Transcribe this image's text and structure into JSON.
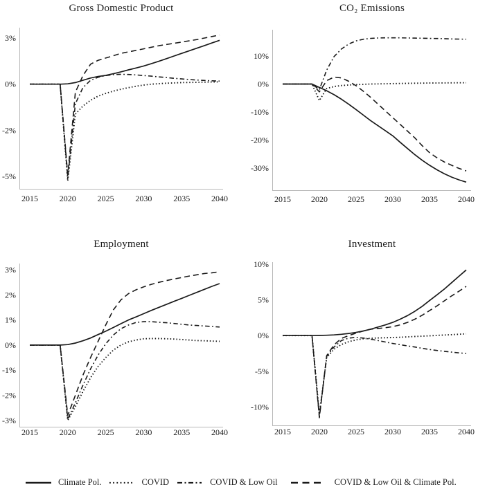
{
  "figure": {
    "background": "#ffffff",
    "line_color": "#1a1a1a",
    "axis_color": "#b8b8b8"
  },
  "legend": {
    "items": [
      {
        "label": "Climate Pol.",
        "style": "solid"
      },
      {
        "label": "COVID",
        "style": "dotted"
      },
      {
        "label": "COVID & Low Oil",
        "style": "dashdot"
      },
      {
        "label": "COVID & Low Oil & Climate Pol.",
        "style": "dashed"
      }
    ]
  },
  "chart_data": [
    {
      "id": "gdp",
      "type": "line",
      "title": "Gross Domestic Product",
      "xlabel": "",
      "ylabel": "",
      "x_ticks": [
        "2015",
        "2020",
        "2025",
        "2030",
        "2035",
        "2040"
      ],
      "y_ticks": [
        {
          "label": "3%",
          "value": 3
        },
        {
          "label": "0%",
          "value": 0
        },
        {
          "label": "-2%",
          "value": -2
        },
        {
          "label": "-5%",
          "value": -5
        }
      ],
      "xlim": [
        2015,
        2040
      ],
      "years": [
        2015,
        2016,
        2017,
        2018,
        2019,
        2020,
        2021,
        2022,
        2023,
        2024,
        2025,
        2026,
        2027,
        2028,
        2029,
        2030,
        2031,
        2032,
        2033,
        2034,
        2035,
        2036,
        2037,
        2038,
        2039,
        2040
      ],
      "series": [
        {
          "name": "Climate Pol.",
          "style": "solid",
          "values": [
            0,
            0,
            0,
            0,
            0,
            0.02,
            0.1,
            0.25,
            0.4,
            0.5,
            0.57,
            0.68,
            0.8,
            0.93,
            1.05,
            1.18,
            1.33,
            1.49,
            1.66,
            1.83,
            2.0,
            2.17,
            2.34,
            2.51,
            2.68,
            2.85
          ]
        },
        {
          "name": "COVID",
          "style": "dotted",
          "values": [
            0,
            0,
            0,
            0,
            0,
            -5.3,
            -1.3,
            -0.95,
            -0.7,
            -0.52,
            -0.4,
            -0.3,
            -0.22,
            -0.15,
            -0.09,
            -0.04,
            0,
            0.03,
            0.06,
            0.08,
            0.1,
            0.11,
            0.12,
            0.13,
            0.14,
            0.15
          ]
        },
        {
          "name": "COVID & Low Oil",
          "style": "dashdot",
          "values": [
            0,
            0,
            0,
            0,
            0,
            -5.1,
            -0.85,
            -0.15,
            0.25,
            0.45,
            0.56,
            0.62,
            0.64,
            0.63,
            0.6,
            0.56,
            0.52,
            0.47,
            0.43,
            0.38,
            0.34,
            0.3,
            0.27,
            0.24,
            0.22,
            0.2
          ]
        },
        {
          "name": "COVID & Low Oil & Climate Pol.",
          "style": "dashed",
          "values": [
            0,
            0,
            0,
            0,
            0,
            -4.9,
            -0.35,
            0.55,
            1.3,
            1.55,
            1.7,
            1.85,
            2.0,
            2.1,
            2.2,
            2.3,
            2.4,
            2.5,
            2.58,
            2.66,
            2.74,
            2.82,
            2.9,
            3.0,
            3.1,
            3.2
          ]
        }
      ]
    },
    {
      "id": "co2",
      "type": "line",
      "title": "CO₂ Emissions",
      "xlabel": "",
      "ylabel": "",
      "x_ticks": [
        "2015",
        "2020",
        "2025",
        "2030",
        "2035",
        "2040"
      ],
      "y_ticks": [
        {
          "label": "10%",
          "value": 10
        },
        {
          "label": "0%",
          "value": 0
        },
        {
          "label": "-10%",
          "value": -10
        },
        {
          "label": "-20%",
          "value": -20
        },
        {
          "label": "-30%",
          "value": -30
        }
      ],
      "xlim": [
        2015,
        2040
      ],
      "years": [
        2015,
        2016,
        2017,
        2018,
        2019,
        2020,
        2021,
        2022,
        2023,
        2024,
        2025,
        2026,
        2027,
        2028,
        2029,
        2030,
        2031,
        2032,
        2033,
        2034,
        2035,
        2036,
        2037,
        2038,
        2039,
        2040
      ],
      "series": [
        {
          "name": "Climate Pol.",
          "style": "solid",
          "values": [
            0,
            0,
            0,
            0,
            0,
            -1.2,
            -2.4,
            -3.8,
            -5.4,
            -7.2,
            -9.1,
            -11.1,
            -13.1,
            -14.9,
            -16.7,
            -18.5,
            -20.8,
            -23.0,
            -25.2,
            -27.2,
            -29.0,
            -30.6,
            -32.0,
            -33.2,
            -34.2,
            -35.0
          ]
        },
        {
          "name": "COVID",
          "style": "dotted",
          "values": [
            0,
            0,
            0,
            0,
            0,
            -5.9,
            -1.6,
            -0.9,
            -0.55,
            -0.35,
            -0.2,
            -0.1,
            0,
            0.05,
            0.1,
            0.15,
            0.2,
            0.25,
            0.3,
            0.33,
            0.36,
            0.38,
            0.4,
            0.42,
            0.44,
            0.45
          ]
        },
        {
          "name": "COVID & Low Oil",
          "style": "dashdot",
          "values": [
            0,
            0,
            0,
            0,
            0,
            -2.0,
            5.0,
            9.8,
            12.5,
            14.3,
            15.4,
            16.0,
            16.3,
            16.45,
            16.5,
            16.5,
            16.5,
            16.45,
            16.4,
            16.35,
            16.3,
            16.25,
            16.2,
            16.1,
            16.05,
            16.0
          ]
        },
        {
          "name": "COVID & Low Oil & Climate Pol.",
          "style": "dashed",
          "values": [
            0,
            0,
            0,
            0,
            0,
            -2.8,
            1.2,
            2.5,
            2.2,
            1.0,
            -0.6,
            -2.6,
            -4.8,
            -7.2,
            -9.6,
            -12.0,
            -14.4,
            -16.8,
            -19.2,
            -22.0,
            -24.5,
            -26.3,
            -27.8,
            -29.0,
            -30.1,
            -31.0
          ]
        }
      ]
    },
    {
      "id": "employment",
      "type": "line",
      "title": "Employment",
      "xlabel": "",
      "ylabel": "",
      "x_ticks": [
        "2015",
        "2020",
        "2025",
        "2030",
        "2035",
        "2040"
      ],
      "y_ticks": [
        {
          "label": "3%",
          "value": 3
        },
        {
          "label": "2%",
          "value": 2
        },
        {
          "label": "1%",
          "value": 1
        },
        {
          "label": "0%",
          "value": 0
        },
        {
          "label": "-1%",
          "value": -1
        },
        {
          "label": "-2%",
          "value": -2
        },
        {
          "label": "-3%",
          "value": -3
        }
      ],
      "xlim": [
        2015,
        2040
      ],
      "years": [
        2015,
        2016,
        2017,
        2018,
        2019,
        2020,
        2021,
        2022,
        2023,
        2024,
        2025,
        2026,
        2027,
        2028,
        2029,
        2030,
        2031,
        2032,
        2033,
        2034,
        2035,
        2036,
        2037,
        2038,
        2039,
        2040
      ],
      "series": [
        {
          "name": "Climate Pol.",
          "style": "solid",
          "values": [
            0,
            0,
            0,
            0,
            0,
            0.02,
            0.08,
            0.17,
            0.28,
            0.42,
            0.55,
            0.7,
            0.85,
            1.0,
            1.12,
            1.25,
            1.38,
            1.5,
            1.62,
            1.74,
            1.86,
            1.98,
            2.1,
            2.22,
            2.34,
            2.45
          ]
        },
        {
          "name": "COVID",
          "style": "dotted",
          "values": [
            0,
            0,
            0,
            0,
            0,
            -3.0,
            -2.45,
            -1.85,
            -1.3,
            -0.85,
            -0.5,
            -0.2,
            0,
            0.13,
            0.2,
            0.25,
            0.26,
            0.26,
            0.25,
            0.24,
            0.22,
            0.2,
            0.18,
            0.17,
            0.16,
            0.15
          ]
        },
        {
          "name": "COVID & Low Oil",
          "style": "dashdot",
          "values": [
            0,
            0,
            0,
            0,
            0,
            -2.95,
            -2.3,
            -1.6,
            -0.95,
            -0.4,
            0.05,
            0.4,
            0.65,
            0.8,
            0.9,
            0.93,
            0.93,
            0.91,
            0.89,
            0.86,
            0.83,
            0.8,
            0.78,
            0.76,
            0.74,
            0.72
          ]
        },
        {
          "name": "COVID & Low Oil & Climate Pol.",
          "style": "dashed",
          "values": [
            0,
            0,
            0,
            0,
            0,
            -2.8,
            -2.0,
            -1.2,
            -0.5,
            0.15,
            0.8,
            1.4,
            1.8,
            2.05,
            2.2,
            2.32,
            2.42,
            2.5,
            2.57,
            2.63,
            2.69,
            2.75,
            2.8,
            2.85,
            2.88,
            2.92
          ]
        }
      ]
    },
    {
      "id": "investment",
      "type": "line",
      "title": "Investment",
      "xlabel": "",
      "ylabel": "",
      "x_ticks": [
        "2015",
        "2020",
        "2025",
        "2030",
        "2035",
        "2040"
      ],
      "y_ticks": [
        {
          "label": "10%",
          "value": 10
        },
        {
          "label": "5%",
          "value": 5
        },
        {
          "label": "0%",
          "value": 0
        },
        {
          "label": "-5%",
          "value": -5
        },
        {
          "label": "-10%",
          "value": -10
        }
      ],
      "xlim": [
        2015,
        2040
      ],
      "years": [
        2015,
        2016,
        2017,
        2018,
        2019,
        2020,
        2021,
        2022,
        2023,
        2024,
        2025,
        2026,
        2027,
        2028,
        2029,
        2030,
        2031,
        2032,
        2033,
        2034,
        2035,
        2036,
        2037,
        2038,
        2039,
        2040
      ],
      "series": [
        {
          "name": "Climate Pol.",
          "style": "solid",
          "values": [
            0,
            0,
            0,
            0,
            0,
            0.02,
            0.05,
            0.1,
            0.18,
            0.3,
            0.45,
            0.65,
            0.9,
            1.2,
            1.5,
            1.85,
            2.3,
            2.8,
            3.4,
            4.1,
            4.9,
            5.7,
            6.5,
            7.4,
            8.3,
            9.2
          ]
        },
        {
          "name": "COVID",
          "style": "dotted",
          "values": [
            0,
            0,
            0,
            0,
            0,
            -11.0,
            -3.1,
            -1.9,
            -1.25,
            -0.85,
            -0.6,
            -0.45,
            -0.38,
            -0.33,
            -0.3,
            -0.27,
            -0.23,
            -0.18,
            -0.13,
            -0.08,
            -0.03,
            0.03,
            0.08,
            0.13,
            0.18,
            0.25
          ]
        },
        {
          "name": "COVID & Low Oil",
          "style": "dashdot",
          "values": [
            0,
            0,
            0,
            0,
            0,
            -11.3,
            -2.9,
            -1.6,
            -0.7,
            -0.35,
            -0.25,
            -0.35,
            -0.5,
            -0.7,
            -0.9,
            -1.1,
            -1.27,
            -1.44,
            -1.6,
            -1.78,
            -1.95,
            -2.08,
            -2.2,
            -2.32,
            -2.42,
            -2.5
          ]
        },
        {
          "name": "COVID & Low Oil & Climate Pol.",
          "style": "dashed",
          "values": [
            0,
            0,
            0,
            0,
            0,
            -11.5,
            -2.8,
            -1.3,
            -0.4,
            0.0,
            0.35,
            0.65,
            0.9,
            1.0,
            1.1,
            1.25,
            1.5,
            1.85,
            2.3,
            2.85,
            3.5,
            4.15,
            4.85,
            5.55,
            6.2,
            6.9
          ]
        }
      ]
    }
  ]
}
